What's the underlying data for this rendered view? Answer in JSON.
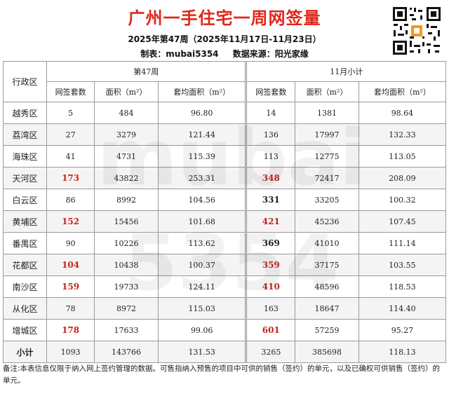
{
  "header": {
    "title": "广州一手住宅一周网签量",
    "subtitle": "2025年第47周（2025年11月17日-11月23日）",
    "author": "制表：mubai5354",
    "source": "数据来源：阳光家缘"
  },
  "watermark": "mubai 5354",
  "table": {
    "district_header": "行政区",
    "group1": "第47周",
    "group2": "11月小计",
    "col_units": "网签套数",
    "col_area": "面积（m²）",
    "col_avg": "套均面积（m²）",
    "rows": [
      {
        "district": "越秀区",
        "w_units": "5",
        "w_area": "484",
        "w_avg": "96.80",
        "m_units": "14",
        "m_area": "1381",
        "m_avg": "98.64"
      },
      {
        "district": "荔湾区",
        "w_units": "27",
        "w_area": "3279",
        "w_avg": "121.44",
        "m_units": "136",
        "m_area": "17997",
        "m_avg": "132.33"
      },
      {
        "district": "海珠区",
        "w_units": "41",
        "w_area": "4731",
        "w_avg": "115.39",
        "m_units": "113",
        "m_area": "12775",
        "m_avg": "113.05"
      },
      {
        "district": "天河区",
        "w_units": "173",
        "w_area": "43822",
        "w_avg": "253.31",
        "m_units": "348",
        "m_area": "72417",
        "m_avg": "208.09"
      },
      {
        "district": "白云区",
        "w_units": "86",
        "w_area": "8992",
        "w_avg": "104.56",
        "m_units": "331",
        "m_area": "33205",
        "m_avg": "100.32"
      },
      {
        "district": "黄埔区",
        "w_units": "152",
        "w_area": "15456",
        "w_avg": "101.68",
        "m_units": "421",
        "m_area": "45236",
        "m_avg": "107.45"
      },
      {
        "district": "番禺区",
        "w_units": "90",
        "w_area": "10226",
        "w_avg": "113.62",
        "m_units": "369",
        "m_area": "41010",
        "m_avg": "111.14"
      },
      {
        "district": "花都区",
        "w_units": "104",
        "w_area": "10438",
        "w_avg": "100.37",
        "m_units": "359",
        "m_area": "37175",
        "m_avg": "103.55"
      },
      {
        "district": "南沙区",
        "w_units": "159",
        "w_area": "19733",
        "w_avg": "124.11",
        "m_units": "410",
        "m_area": "48596",
        "m_avg": "118.53"
      },
      {
        "district": "从化区",
        "w_units": "78",
        "w_area": "8972",
        "w_avg": "115.03",
        "m_units": "163",
        "m_area": "18647",
        "m_avg": "114.40"
      },
      {
        "district": "增城区",
        "w_units": "178",
        "w_area": "17633",
        "w_avg": "99.06",
        "m_units": "601",
        "m_area": "57259",
        "m_avg": "95.27"
      }
    ],
    "total": {
      "district": "小计",
      "w_units": "1093",
      "w_area": "143766",
      "w_avg": "131.53",
      "m_units": "3265",
      "m_area": "385698",
      "m_avg": "118.13"
    }
  },
  "note": "备注:本表信息仅限于纳入网上签约管理的数据。可售指纳入预售的项目中可供的销售（签约）的单元，以及已确权可供销售（签约）的单元。",
  "colors": {
    "title": "#e0261c",
    "highlight": "#c8221a"
  }
}
